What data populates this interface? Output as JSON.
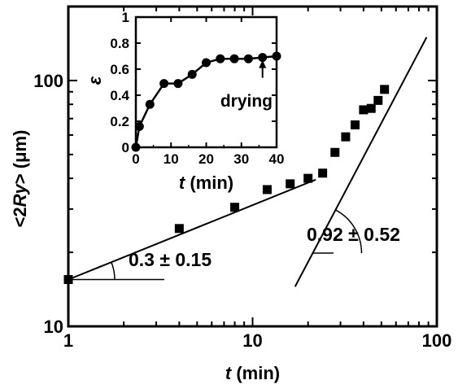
{
  "chart_data": [
    {
      "type": "scatter",
      "scale": {
        "x": "log",
        "y": "log"
      },
      "xlim": [
        1,
        100
      ],
      "ylim": [
        10,
        200
      ],
      "xlabel": {
        "italic": "t",
        "rest": " (min)"
      },
      "ylabel": {
        "pre": "<2",
        "italic": "Ry",
        "post": "> (μm)"
      },
      "x_ticks": [
        "1",
        "10",
        "100"
      ],
      "y_ticks": [
        "10",
        "100"
      ],
      "series": [
        {
          "marker": "square",
          "x": [
            1,
            4,
            8,
            12,
            16,
            20,
            24,
            28,
            32,
            36,
            40,
            44,
            48,
            52
          ],
          "y": [
            15.5,
            25,
            30.5,
            36,
            38,
            40,
            42,
            51,
            59,
            66,
            76,
            77,
            83,
            92
          ]
        }
      ],
      "fit_lines": [
        {
          "x": [
            1,
            22
          ],
          "y": [
            15.5,
            39.5
          ]
        },
        {
          "x": [
            17,
            88
          ],
          "y": [
            14.5,
            150
          ]
        }
      ],
      "annotations": [
        {
          "text": "0.3 ± 0.15"
        },
        {
          "text": "0.92 ± 0.52"
        }
      ]
    },
    {
      "type": "line",
      "xlim": [
        0,
        40
      ],
      "ylim": [
        0,
        1
      ],
      "xlabel": {
        "italic": "t",
        "rest": " (min)"
      },
      "ylabel": "ε",
      "x_ticks": [
        "0",
        "10",
        "20",
        "30",
        "40"
      ],
      "y_ticks": [
        "0",
        "0.2",
        "0.4",
        "0.6",
        "0.8",
        "1"
      ],
      "series": [
        {
          "marker": "circle",
          "x": [
            0,
            1,
            4,
            8,
            12,
            16,
            20,
            24,
            28,
            32,
            36,
            40
          ],
          "y": [
            0,
            0.16,
            0.33,
            0.49,
            0.49,
            0.56,
            0.65,
            0.68,
            0.68,
            0.68,
            0.69,
            0.7
          ]
        }
      ],
      "annotations": [
        {
          "text": "drying",
          "arrow_to": {
            "x": 36,
            "y": 0.69
          }
        }
      ]
    }
  ]
}
